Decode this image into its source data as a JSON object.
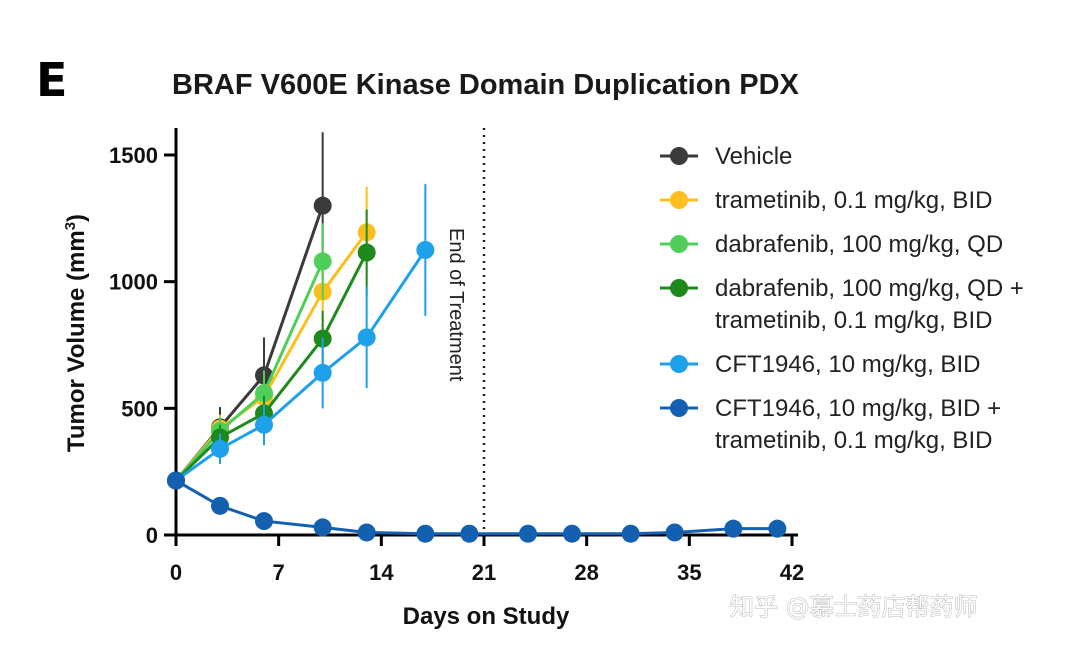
{
  "panel_label": "E",
  "watermark": "知乎 @慕士药店帮药师",
  "chart_data": {
    "type": "line",
    "title": "BRAF V600E Kinase Domain Duplication PDX",
    "xlabel": "Days on Study",
    "ylabel": "Tumor Volume (mm",
    "ylabel_sup": "3",
    "ylabel_suffix": ")",
    "xlim": [
      0,
      42
    ],
    "ylim": [
      0,
      1600
    ],
    "xticks": [
      0,
      7,
      14,
      21,
      28,
      35,
      42
    ],
    "yticks": [
      0,
      500,
      1000,
      1500
    ],
    "annotation": {
      "text": "End of Treatment",
      "x": 21
    },
    "series": [
      {
        "name": "Vehicle",
        "legend": [
          "Vehicle"
        ],
        "color": "#3a3a3a",
        "x": [
          0,
          3,
          6,
          10
        ],
        "y": [
          215,
          425,
          630,
          1300
        ],
        "err": [
          0,
          80,
          150,
          290
        ]
      },
      {
        "name": "trametinib, 0.1 mg/kg, BID",
        "legend": [
          "trametinib, 0.1 mg/kg, BID"
        ],
        "color": "#fcbf1e",
        "x": [
          0,
          3,
          6,
          10,
          13
        ],
        "y": [
          215,
          420,
          545,
          960,
          1195
        ],
        "err": [
          0,
          55,
          100,
          170,
          180
        ]
      },
      {
        "name": "dabrafenib, 100 mg/kg, QD",
        "legend": [
          "dabrafenib, 100 mg/kg, QD"
        ],
        "color": "#4fce5a",
        "x": [
          0,
          3,
          6,
          10
        ],
        "y": [
          215,
          410,
          560,
          1080
        ],
        "err": [
          0,
          55,
          90,
          150
        ]
      },
      {
        "name": "dabrafenib, 100 mg/kg, QD + trametinib, 0.1 mg/kg, BID",
        "legend": [
          "dabrafenib, 100 mg/kg, QD +",
          "trametinib, 0.1 mg/kg, BID"
        ],
        "color": "#1e8a1e",
        "x": [
          0,
          3,
          6,
          10,
          13
        ],
        "y": [
          215,
          385,
          480,
          775,
          1115
        ],
        "err": [
          0,
          50,
          70,
          110,
          170
        ]
      },
      {
        "name": "CFT1946, 10 mg/kg, BID",
        "legend": [
          "CFT1946, 10 mg/kg, BID"
        ],
        "color": "#1ea0ea",
        "x": [
          0,
          3,
          6,
          10,
          13,
          17
        ],
        "y": [
          215,
          340,
          435,
          640,
          780,
          1125
        ],
        "err": [
          0,
          60,
          80,
          140,
          200,
          260
        ]
      },
      {
        "name": "CFT1946, 10 mg/kg, BID + trametinib, 0.1 mg/kg, BID",
        "legend": [
          "CFT1946, 10 mg/kg, BID +",
          "trametinib, 0.1 mg/kg, BID"
        ],
        "color": "#1460b0",
        "x": [
          0,
          3,
          6,
          10,
          13,
          17,
          20,
          24,
          27,
          31,
          34,
          38,
          41
        ],
        "y": [
          215,
          115,
          55,
          30,
          10,
          5,
          5,
          5,
          5,
          5,
          10,
          25,
          25
        ],
        "err": [
          0,
          10,
          10,
          8,
          5,
          3,
          3,
          3,
          3,
          3,
          5,
          10,
          10
        ]
      }
    ]
  }
}
